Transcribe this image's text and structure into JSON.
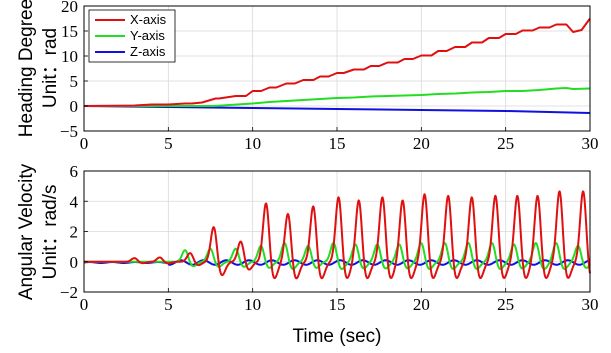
{
  "figure": {
    "xlabel": "Time (sec)"
  },
  "chart_data": [
    {
      "type": "line",
      "title": "",
      "ylabel_line1": "Heading Degree",
      "ylabel_line2": "Unit：rad",
      "xlim": [
        0,
        30
      ],
      "ylim": [
        -5,
        20
      ],
      "xticks": [
        "0",
        "5",
        "10",
        "15",
        "20",
        "25",
        "30"
      ],
      "yticks": [
        "20",
        "15",
        "10",
        "5",
        "0",
        "−5"
      ],
      "grid": true,
      "legend": {
        "placement": "top-left",
        "entries": [
          "X-axis",
          "Y-axis",
          "Z-axis"
        ]
      },
      "series": [
        {
          "name": "X-axis",
          "color": "#e01010",
          "x": [
            0,
            3,
            4,
            5,
            6,
            6.4,
            7,
            7.8,
            8,
            9,
            9.6,
            10,
            10.5,
            11,
            11.4,
            12,
            12.5,
            13,
            13.6,
            14,
            14.5,
            15,
            15.4,
            16,
            16.6,
            17,
            17.5,
            18,
            18.6,
            19,
            19.5,
            20,
            20.6,
            21,
            21.5,
            22,
            22.6,
            23,
            23.6,
            24,
            24.6,
            25,
            25.6,
            26,
            26.6,
            27,
            27.6,
            28,
            28.6,
            29,
            29.5,
            30
          ],
          "y": [
            0,
            0.1,
            0.3,
            0.3,
            0.5,
            0.5,
            0.7,
            1.5,
            1.5,
            2.0,
            2.0,
            3.0,
            3.0,
            3.7,
            3.7,
            4.5,
            4.5,
            5.2,
            5.2,
            5.9,
            5.9,
            6.6,
            6.6,
            7.3,
            7.3,
            8.0,
            8.0,
            8.7,
            8.7,
            9.4,
            9.4,
            10.1,
            10.1,
            11.0,
            11.0,
            11.8,
            11.8,
            12.7,
            12.7,
            13.6,
            13.6,
            14.4,
            14.4,
            15.1,
            15.1,
            15.7,
            15.7,
            16.3,
            16.3,
            14.8,
            15.2,
            17.5
          ]
        },
        {
          "name": "Y-axis",
          "color": "#22dd22",
          "x": [
            0,
            6,
            7.7,
            10,
            11,
            12,
            13,
            14,
            15,
            16,
            17,
            18,
            19,
            20,
            21,
            22,
            23,
            24,
            25,
            26,
            27,
            28,
            28.6,
            29,
            30
          ],
          "y": [
            0,
            0,
            0,
            0.5,
            0.8,
            1.0,
            1.2,
            1.4,
            1.6,
            1.7,
            1.9,
            2.0,
            2.1,
            2.2,
            2.4,
            2.5,
            2.7,
            2.8,
            3.0,
            3.0,
            3.2,
            3.5,
            3.6,
            3.4,
            3.5
          ]
        },
        {
          "name": "Z-axis",
          "color": "#1010e0",
          "x": [
            0,
            5,
            10,
            15,
            20,
            25,
            30
          ],
          "y": [
            0,
            -0.2,
            -0.4,
            -0.6,
            -0.8,
            -1.0,
            -1.4
          ]
        }
      ]
    },
    {
      "type": "line",
      "title": "",
      "ylabel_line1": "Angular Velocity",
      "ylabel_line2": "Unit：rad/s",
      "xlim": [
        0,
        30
      ],
      "ylim": [
        -2,
        6
      ],
      "xticks": [
        "0",
        "5",
        "10",
        "15",
        "20",
        "25",
        "30"
      ],
      "yticks": [
        "6",
        "4",
        "2",
        "0",
        "−2"
      ],
      "grid": true,
      "series": [
        {
          "name": "X-axis",
          "color": "#e01010",
          "peaks": {
            "t": [
              3,
              4.5,
              6.3,
              7.7,
              9.3,
              10.8,
              12.1,
              13.6,
              15.1,
              16.3,
              17.7,
              18.9,
              20.2,
              21.6,
              23.0,
              24.4,
              25.7,
              26.9,
              28.2,
              29.6
            ],
            "a": [
              0.25,
              0.3,
              0.6,
              2.4,
              1.4,
              4.0,
              3.3,
              3.8,
              4.4,
              4.2,
              4.4,
              4.2,
              4.6,
              4.5,
              4.4,
              4.5,
              4.5,
              4.5,
              4.8,
              4.8
            ],
            "trough": -1.2
          }
        },
        {
          "name": "Y-axis",
          "color": "#22dd22",
          "peaks": {
            "t": [
              6.0,
              7.5,
              9.0,
              10.5,
              11.9,
              13.3,
              14.8,
              16.1,
              17.4,
              18.7,
              20.0,
              21.4,
              22.8,
              24.2,
              25.5,
              26.8,
              28.0,
              29.3
            ],
            "a": [
              0.8,
              0.9,
              0.9,
              1.1,
              1.3,
              1.1,
              1.3,
              1.2,
              1.2,
              1.2,
              1.3,
              1.3,
              1.3,
              1.3,
              1.2,
              1.3,
              1.3,
              1.1
            ],
            "trough": -1.2
          }
        },
        {
          "name": "Z-axis",
          "color": "#1010e0",
          "amp": 0.15
        }
      ]
    }
  ]
}
